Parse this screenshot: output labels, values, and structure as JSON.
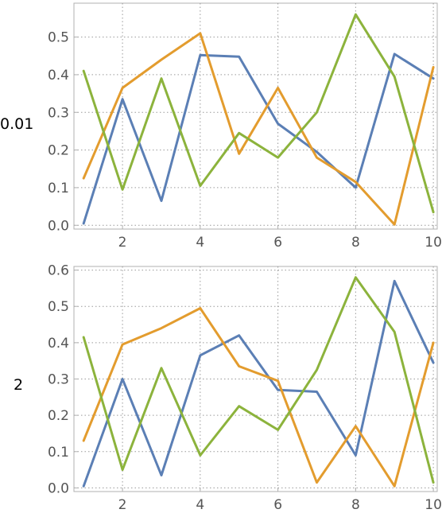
{
  "chart_data": [
    {
      "type": "line",
      "row_label": "0.01",
      "x": [
        1,
        2,
        3,
        4,
        5,
        6,
        7,
        8,
        9,
        10
      ],
      "xlim": [
        0.75,
        10.1
      ],
      "ylim": [
        -0.01,
        0.59
      ],
      "xticks": [
        2,
        4,
        6,
        8,
        10
      ],
      "yticks": [
        "0.0",
        "0.1",
        "0.2",
        "0.3",
        "0.4",
        "0.5"
      ],
      "grid": true,
      "series": [
        {
          "color": "#5b7fb5",
          "values": [
            0.005,
            0.335,
            0.065,
            0.452,
            0.448,
            0.27,
            0.195,
            0.1,
            0.455,
            0.39
          ]
        },
        {
          "color": "#e39c2e",
          "values": [
            0.125,
            0.365,
            0.44,
            0.51,
            0.19,
            0.365,
            0.18,
            0.115,
            0.002,
            0.42
          ]
        },
        {
          "color": "#8cb33c",
          "values": [
            0.41,
            0.095,
            0.39,
            0.105,
            0.245,
            0.18,
            0.3,
            0.56,
            0.395,
            0.035
          ]
        }
      ]
    },
    {
      "type": "line",
      "row_label": "2",
      "x": [
        1,
        2,
        3,
        4,
        5,
        6,
        7,
        8,
        9,
        10
      ],
      "xlim": [
        0.75,
        10.1
      ],
      "ylim": [
        -0.01,
        0.61
      ],
      "xticks": [
        2,
        4,
        6,
        8,
        10
      ],
      "yticks": [
        "0.0",
        "0.1",
        "0.2",
        "0.3",
        "0.4",
        "0.5",
        "0.6"
      ],
      "grid": true,
      "series": [
        {
          "color": "#5b7fb5",
          "values": [
            0.005,
            0.3,
            0.035,
            0.365,
            0.42,
            0.27,
            0.265,
            0.09,
            0.57,
            0.345
          ]
        },
        {
          "color": "#e39c2e",
          "values": [
            0.13,
            0.395,
            0.44,
            0.495,
            0.335,
            0.295,
            0.015,
            0.17,
            0.005,
            0.4
          ]
        },
        {
          "color": "#8cb33c",
          "values": [
            0.415,
            0.05,
            0.33,
            0.09,
            0.225,
            0.16,
            0.325,
            0.58,
            0.43,
            0.015
          ]
        }
      ]
    }
  ]
}
